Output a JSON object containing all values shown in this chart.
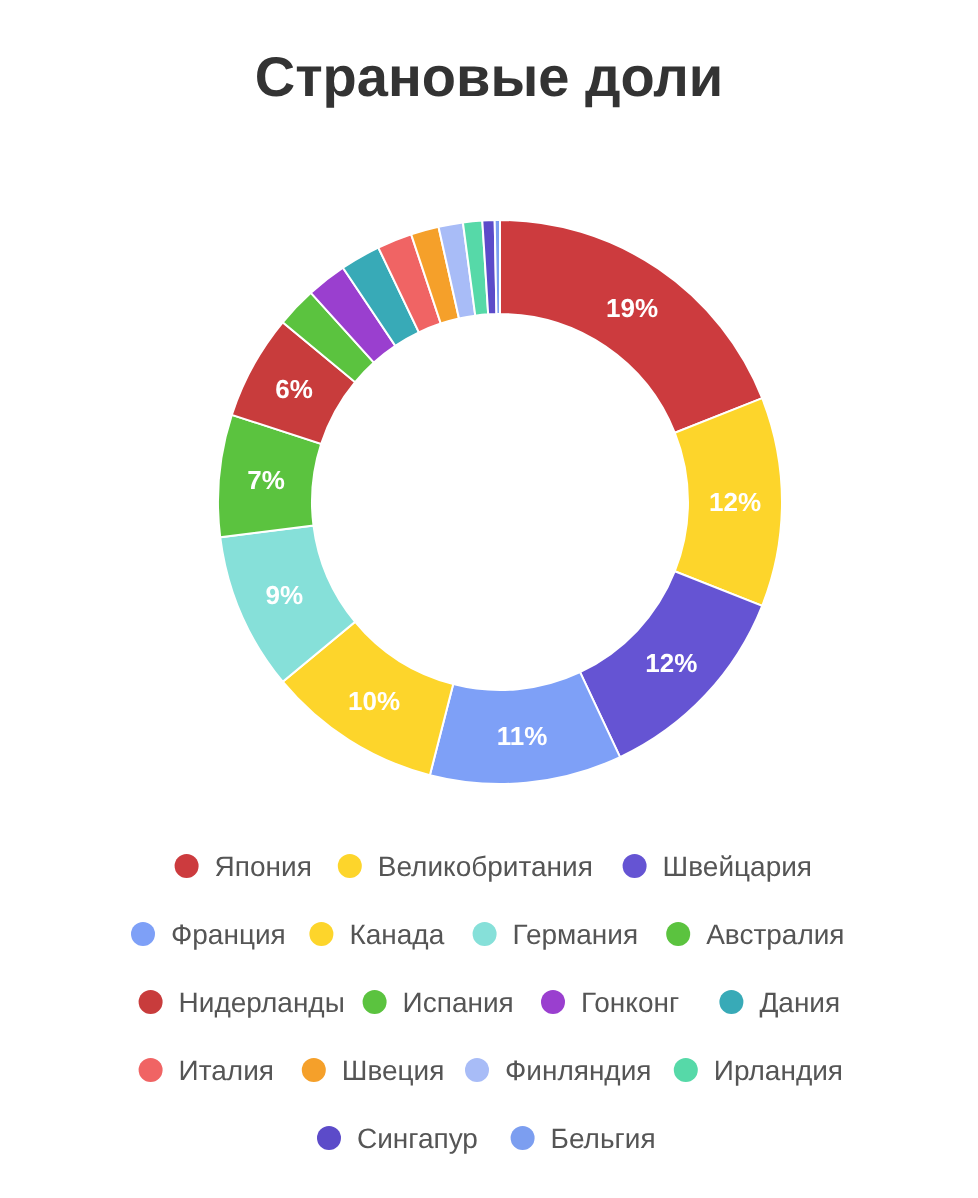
{
  "chart_data": {
    "type": "donut",
    "title": "Страновые доли",
    "categories": [
      "Япония",
      "Великобритания",
      "Швейцария",
      "Франция",
      "Канада",
      "Германия",
      "Австралия",
      "Нидерланды",
      "Испания",
      "Гонконг",
      "Дания",
      "Италия",
      "Швеция",
      "Финляндия",
      "Ирландия",
      "Сингапур",
      "Бельгия"
    ],
    "values": [
      19,
      12,
      12,
      11,
      10,
      9,
      7,
      6,
      2.3,
      2.3,
      2.3,
      2,
      1.6,
      1.4,
      1.1,
      0.7,
      0.3
    ],
    "value_labels": [
      "19%",
      "12%",
      "12%",
      "11%",
      "10%",
      "9%",
      "7%",
      "6%",
      null,
      null,
      null,
      null,
      null,
      null,
      null,
      null,
      null
    ],
    "colors": [
      "#cc3b3e",
      "#fdd52b",
      "#6554d3",
      "#7ea0f7",
      "#fdd52b",
      "#86e0d9",
      "#5bc33f",
      "#c83c3c",
      "#5bc33f",
      "#9a3fcf",
      "#38aab7",
      "#f06464",
      "#f5a02a",
      "#a8bcf7",
      "#56d9a8",
      "#5c4bc9",
      "#7c9ef0"
    ],
    "legend": "bottom"
  }
}
